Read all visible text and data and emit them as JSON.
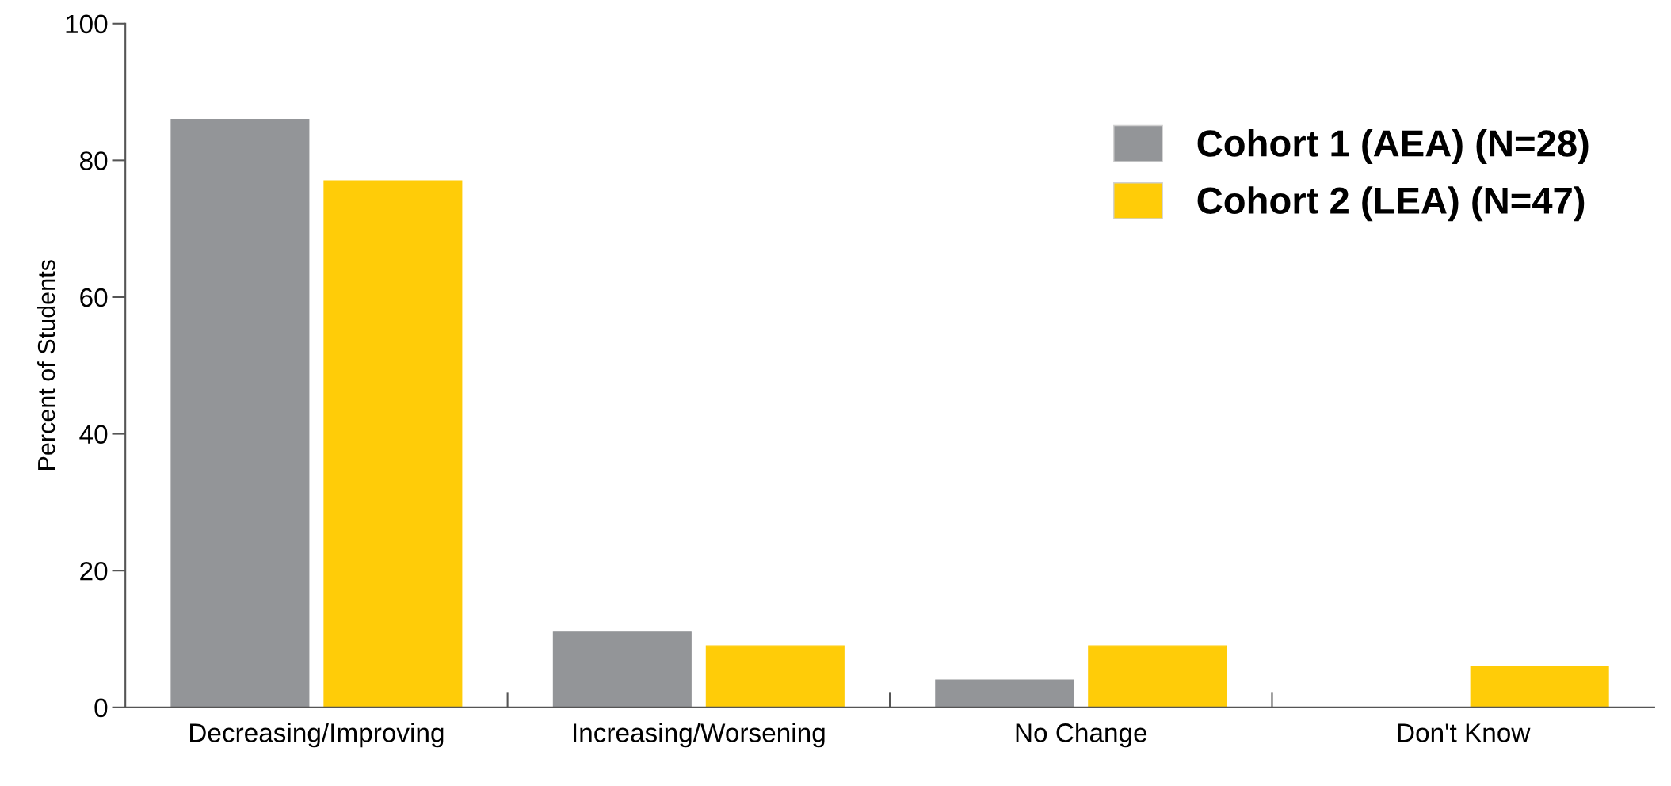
{
  "chart_data": {
    "type": "bar",
    "ylabel": "Percent of Students",
    "categories": [
      "Decreasing/Improving",
      "Increasing/Worsening",
      "No Change",
      "Don't Know"
    ],
    "series": [
      {
        "name": "Cohort 1 (AEA) (N=28)",
        "color": "#939598",
        "values": [
          86,
          11,
          4,
          0
        ]
      },
      {
        "name": "Cohort 2 (LEA) (N=47)",
        "color": "#ffcc08",
        "values": [
          77,
          9,
          9,
          6
        ]
      }
    ],
    "ylim": [
      0,
      100
    ],
    "yticks": [
      0,
      20,
      40,
      60,
      80,
      100
    ],
    "grid": false,
    "legend": "top right"
  }
}
